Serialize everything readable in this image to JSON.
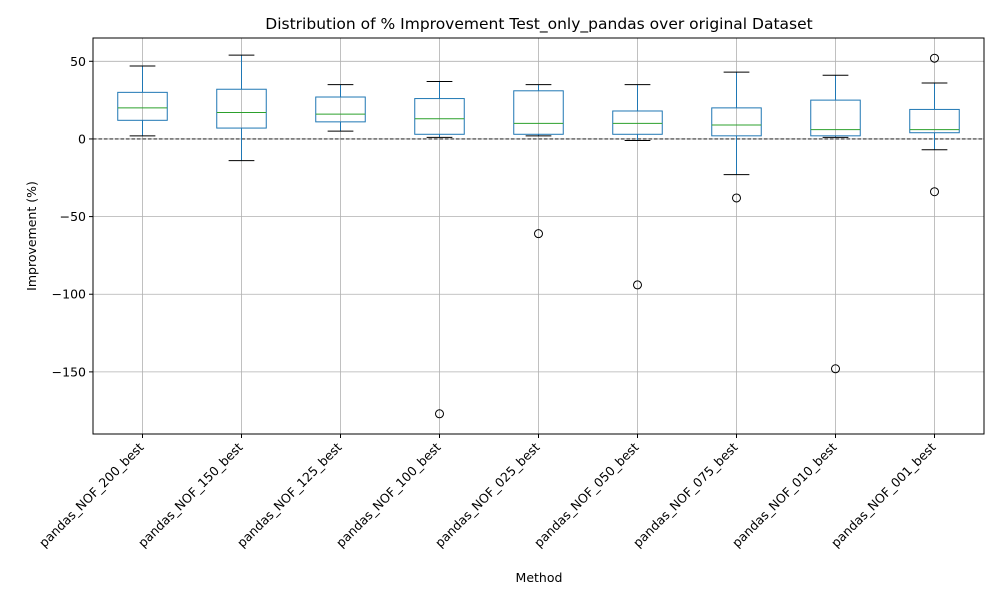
{
  "chart_data": {
    "type": "box",
    "title": "Distribution of % Improvement Test_only_pandas over original Dataset",
    "xlabel": "Method",
    "ylabel": "Improvement (%)",
    "ylim": [
      -190,
      65
    ],
    "yticks": [
      50,
      0,
      -50,
      -100,
      -150
    ],
    "grid": true,
    "reference_line": {
      "y": 0,
      "style": "dashed",
      "color": "#000000"
    },
    "categories": [
      "pandas_NOF_200_best",
      "pandas_NOF_150_best",
      "pandas_NOF_125_best",
      "pandas_NOF_100_best",
      "pandas_NOF_025_best",
      "pandas_NOF_050_best",
      "pandas_NOF_075_best",
      "pandas_NOF_010_best",
      "pandas_NOF_001_best"
    ],
    "boxes": [
      {
        "whisker_low": 2,
        "q1": 12,
        "median": 20,
        "q3": 30,
        "whisker_high": 47,
        "outliers": []
      },
      {
        "whisker_low": -14,
        "q1": 7,
        "median": 17,
        "q3": 32,
        "whisker_high": 54,
        "outliers": []
      },
      {
        "whisker_low": 5,
        "q1": 11,
        "median": 16,
        "q3": 27,
        "whisker_high": 35,
        "outliers": []
      },
      {
        "whisker_low": 1,
        "q1": 3,
        "median": 13,
        "q3": 26,
        "whisker_high": 37,
        "outliers": [
          -177
        ]
      },
      {
        "whisker_low": 2,
        "q1": 3,
        "median": 10,
        "q3": 31,
        "whisker_high": 35,
        "outliers": [
          -61
        ]
      },
      {
        "whisker_low": -1,
        "q1": 3,
        "median": 10,
        "q3": 18,
        "whisker_high": 35,
        "outliers": [
          -94
        ]
      },
      {
        "whisker_low": -23,
        "q1": 2,
        "median": 9,
        "q3": 20,
        "whisker_high": 43,
        "outliers": [
          -38
        ]
      },
      {
        "whisker_low": 1,
        "q1": 2,
        "median": 6,
        "q3": 25,
        "whisker_high": 41,
        "outliers": [
          -148
        ]
      },
      {
        "whisker_low": -7,
        "q1": 4,
        "median": 6,
        "q3": 19,
        "whisker_high": 36,
        "outliers": [
          52,
          -34
        ]
      }
    ],
    "colors": {
      "box": "#1f77b4",
      "median": "#2ca02c",
      "cap": "#000000",
      "grid": "#b0b0b0"
    }
  }
}
